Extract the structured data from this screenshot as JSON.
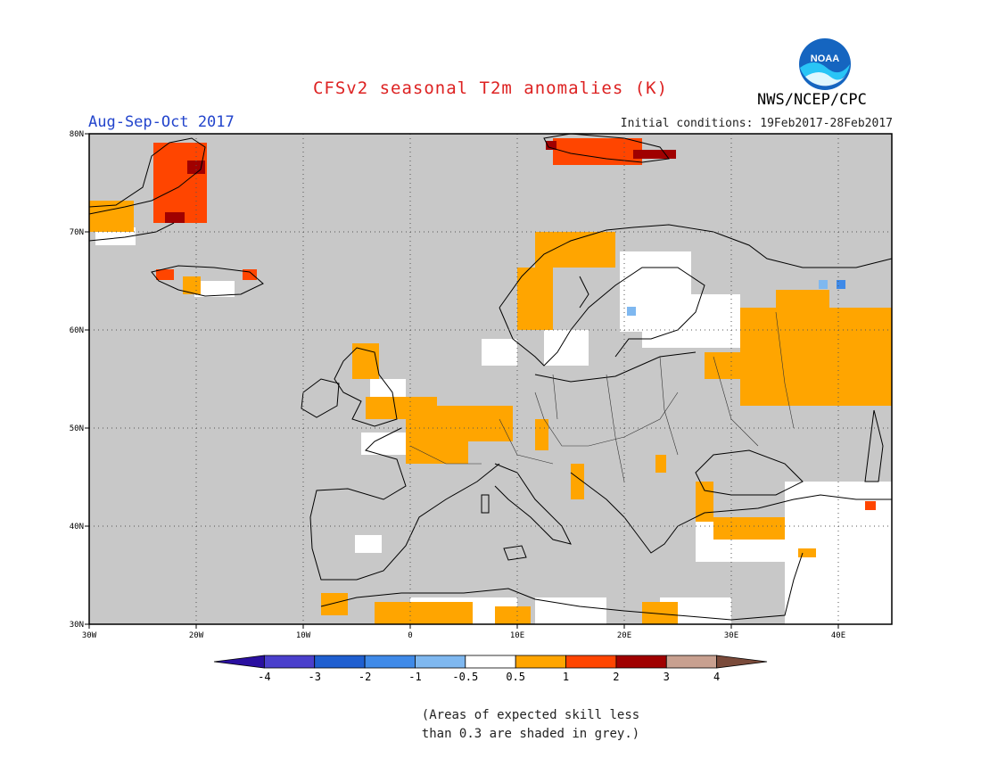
{
  "header": {
    "title": "CFSv2 seasonal T2m anomalies (K)",
    "season": "Aug-Sep-Oct 2017",
    "initial_conditions": "Initial conditions: 19Feb2017-28Feb2017",
    "agency": "NWS/NCEP/CPC",
    "logo_text": "NOAA"
  },
  "colors": {
    "title": "#dd2222",
    "season": "#2244cc",
    "grey_shade": "#c8c8c8",
    "land_line": "#000000"
  },
  "map": {
    "lon_range": [
      -30,
      45
    ],
    "lat_range": [
      30,
      80
    ],
    "lat_labels": [
      "80N",
      "70N",
      "60N",
      "50N",
      "40N",
      "30N"
    ],
    "lon_labels": [
      "30W",
      "20W",
      "10W",
      "0",
      "10E",
      "20E",
      "30E",
      "40E"
    ]
  },
  "legend": {
    "bins": [
      {
        "color": "#2a0fa0"
      },
      {
        "color": "#4a3fcc"
      },
      {
        "color": "#1f5fd0"
      },
      {
        "color": "#3f8ae8"
      },
      {
        "color": "#7fb8f0"
      },
      {
        "color": "#ffffff"
      },
      {
        "color": "#ffa500"
      },
      {
        "color": "#ff4500"
      },
      {
        "color": "#a00000"
      },
      {
        "color": "#c8a090"
      },
      {
        "color": "#7a4a3a"
      }
    ],
    "labels": [
      "-4",
      "-3",
      "-2",
      "-1",
      "-0.5",
      "0.5",
      "1",
      "2",
      "3",
      "4"
    ]
  },
  "footnote": {
    "line1": "(Areas of expected skill less",
    "line2": "than 0.3 are shaded in grey.)"
  }
}
